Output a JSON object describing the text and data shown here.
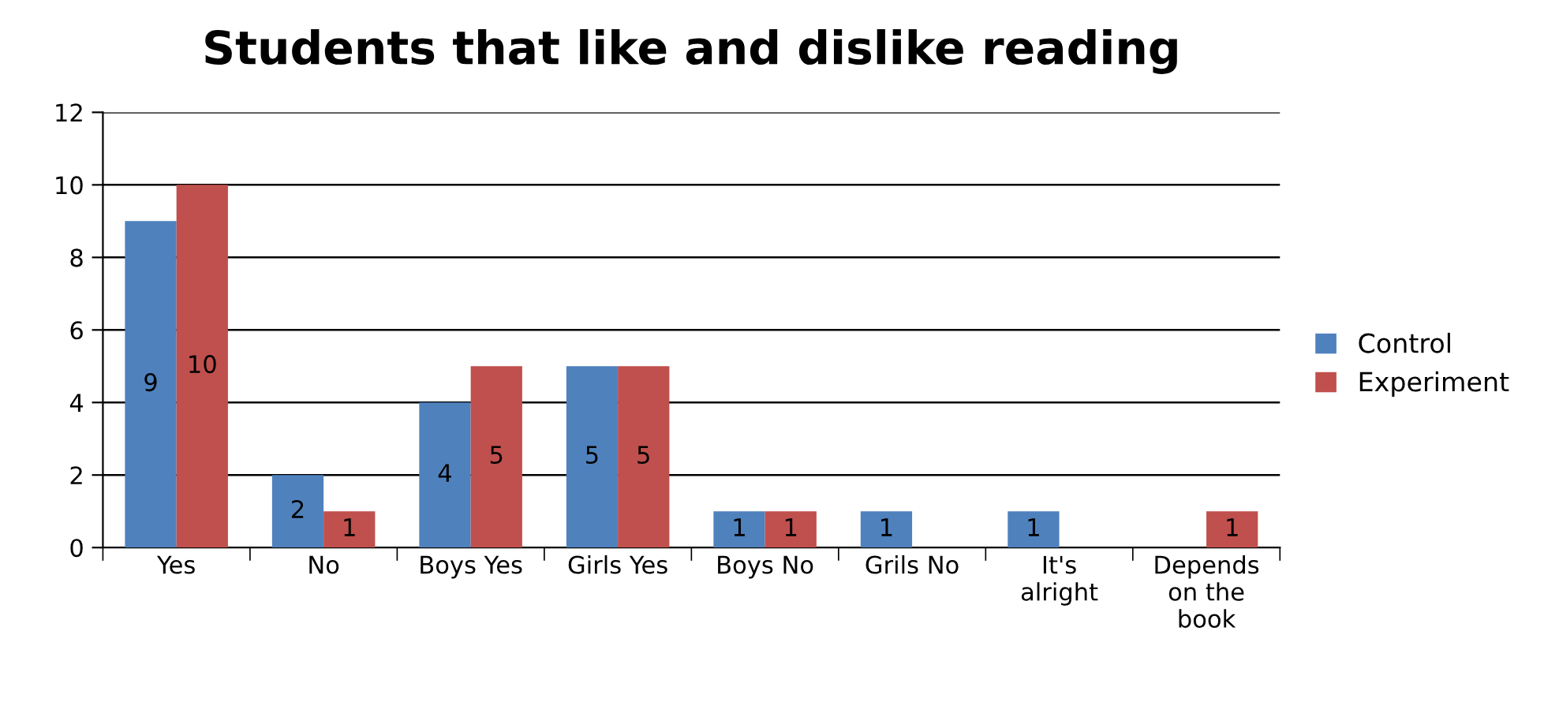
{
  "chart_data": {
    "type": "bar",
    "title": "Students that like and dislike reading",
    "categories": [
      "Yes",
      "No",
      "Boys Yes",
      "Girls Yes",
      "Boys No",
      "Grils No",
      "It's\nalright",
      "Depends\non the\nbook"
    ],
    "series": [
      {
        "name": "Control",
        "color": "#4f81bd",
        "values": [
          9,
          2,
          4,
          5,
          1,
          1,
          1,
          null
        ]
      },
      {
        "name": "Experiment",
        "color": "#c0504d",
        "values": [
          10,
          1,
          5,
          5,
          1,
          null,
          null,
          1
        ]
      }
    ],
    "ylim": [
      0,
      12
    ],
    "yticks": [
      0,
      2,
      4,
      6,
      8,
      10,
      12
    ],
    "grid": "y",
    "legend": "right",
    "data_labels": true
  }
}
